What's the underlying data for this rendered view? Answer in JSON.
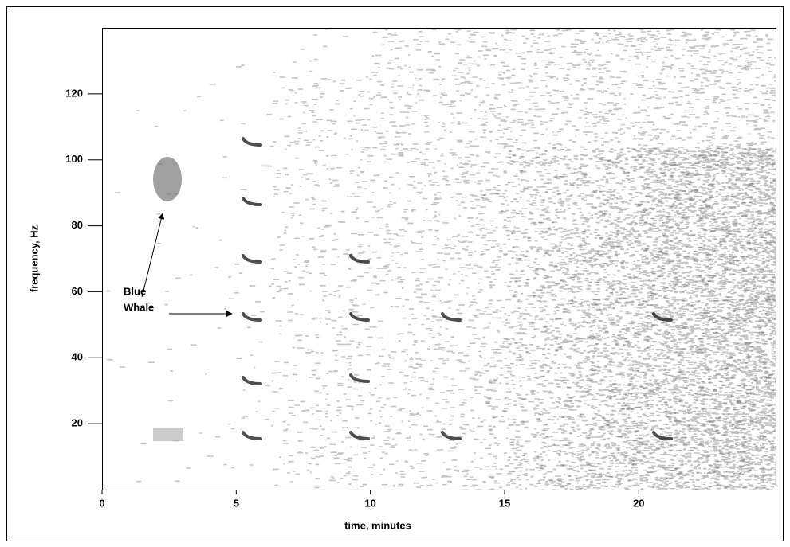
{
  "chart_data": {
    "type": "spectrogram",
    "xlabel": "time, minutes",
    "ylabel": "frequency, Hz",
    "xlim": [
      0,
      25.1
    ],
    "ylim": [
      0,
      140
    ],
    "xticks": [
      0,
      5,
      10,
      15,
      20
    ],
    "yticks": [
      20,
      40,
      60,
      80,
      100,
      120
    ],
    "annotation_lines": [
      "Blue",
      "Whale"
    ]
  }
}
